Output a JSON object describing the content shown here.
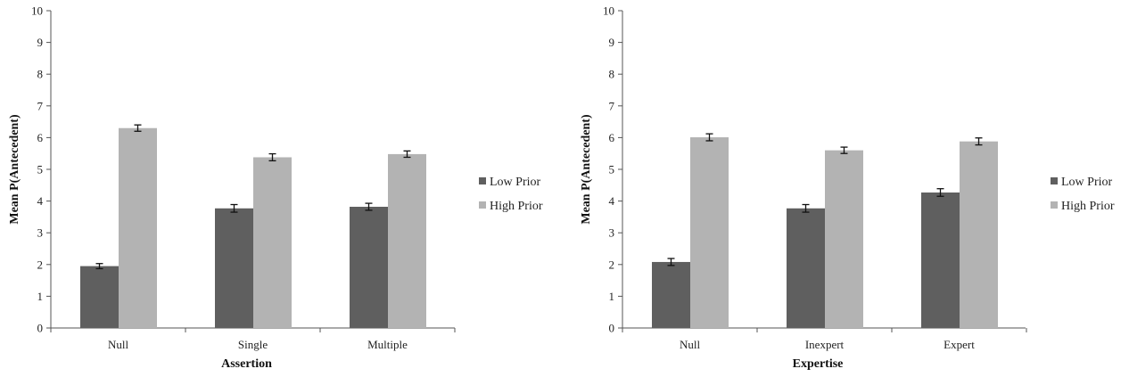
{
  "chart_data": [
    {
      "type": "bar",
      "title": "",
      "xlabel": "Assertion",
      "ylabel": "Mean P(Antecedent)",
      "ylim": [
        0,
        10
      ],
      "yticks": [
        "0",
        "1",
        "2",
        "3",
        "4",
        "5",
        "6",
        "7",
        "8",
        "9",
        "10"
      ],
      "categories": [
        "Null",
        "Single",
        "Multiple"
      ],
      "series": [
        {
          "name": "Low Prior",
          "color": "#5f5f5f",
          "values": [
            1.95,
            3.77,
            3.82
          ],
          "errors": [
            0.08,
            0.12,
            0.11
          ]
        },
        {
          "name": "High Prior",
          "color": "#b3b3b3",
          "values": [
            6.3,
            5.38,
            5.48
          ],
          "errors": [
            0.1,
            0.11,
            0.1
          ]
        }
      ],
      "legend_position": "right",
      "grid": false
    },
    {
      "type": "bar",
      "title": "",
      "xlabel": "Expertise",
      "ylabel": "Mean P(Antecedent)",
      "ylim": [
        0,
        10
      ],
      "yticks": [
        "0",
        "1",
        "2",
        "3",
        "4",
        "5",
        "6",
        "7",
        "8",
        "9",
        "10"
      ],
      "categories": [
        "Null",
        "Inexpert",
        "Expert"
      ],
      "series": [
        {
          "name": "Low Prior",
          "color": "#5f5f5f",
          "values": [
            2.08,
            3.77,
            4.27
          ],
          "errors": [
            0.11,
            0.12,
            0.12
          ]
        },
        {
          "name": "High Prior",
          "color": "#b3b3b3",
          "values": [
            6.01,
            5.6,
            5.88
          ],
          "errors": [
            0.11,
            0.1,
            0.11
          ]
        }
      ],
      "legend_position": "right",
      "grid": false
    }
  ]
}
